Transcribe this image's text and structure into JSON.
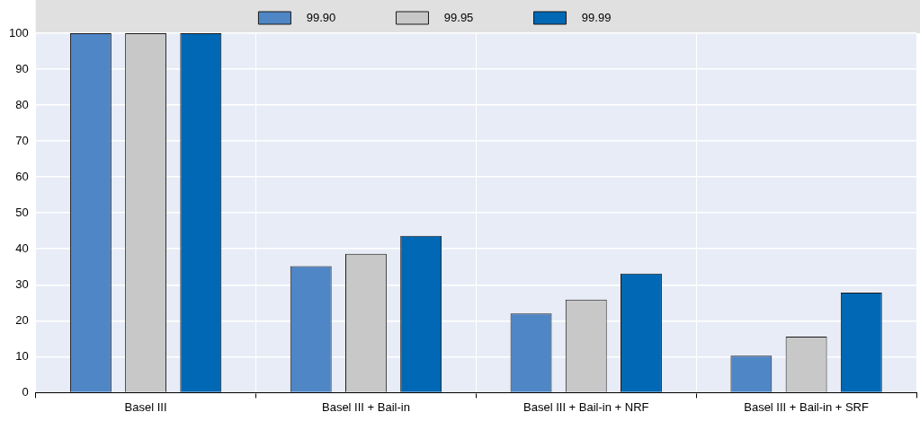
{
  "chart_data": {
    "type": "bar",
    "categories": [
      "Basel III",
      "Basel III + Bail-in",
      "Basel III + Bail-in + NRF",
      "Basel III + Bail-in + SRF"
    ],
    "series": [
      {
        "name": "99.90",
        "color": "#4f86c6",
        "values": [
          100,
          35.2,
          22,
          10.3
        ]
      },
      {
        "name": "99.95",
        "color": "#c8c8c8",
        "values": [
          100,
          38.6,
          25.9,
          15.6
        ]
      },
      {
        "name": "99.99",
        "color": "#0068b4",
        "values": [
          100,
          43.6,
          33.1,
          27.8
        ]
      }
    ],
    "ylim": [
      0,
      100
    ],
    "yticks": [
      0,
      10,
      20,
      30,
      40,
      50,
      60,
      70,
      80,
      90,
      100
    ],
    "grid": true,
    "legend": "top"
  }
}
